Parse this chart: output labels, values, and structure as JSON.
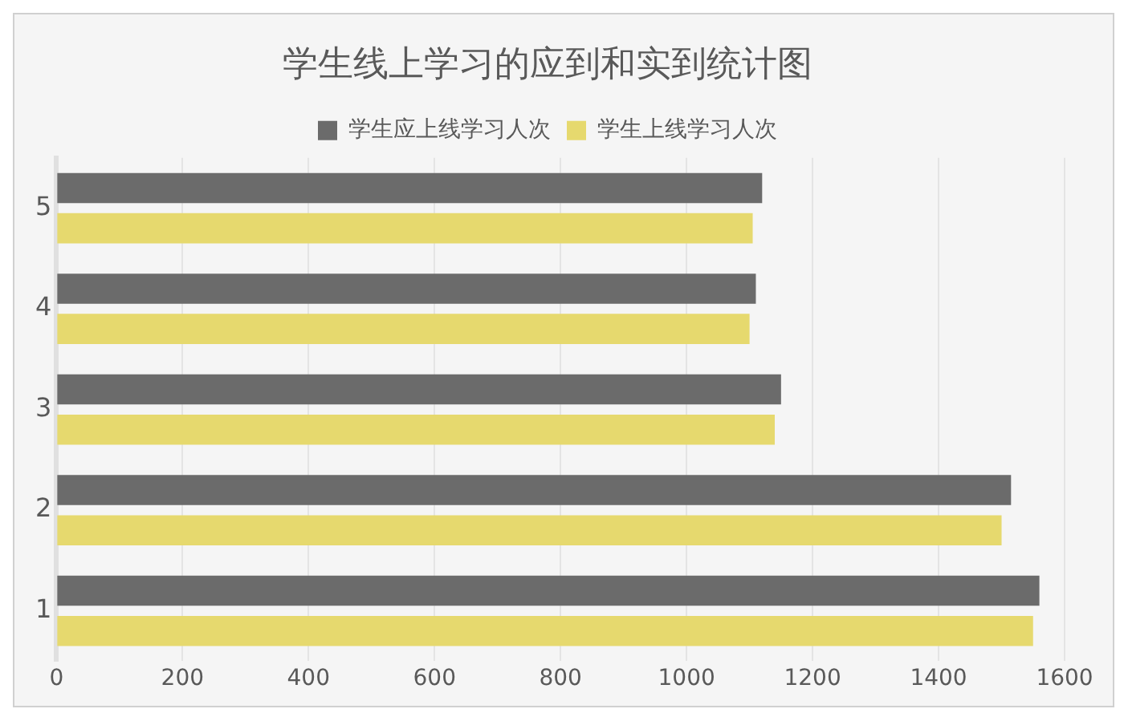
{
  "chart_data": {
    "type": "bar",
    "orientation": "horizontal",
    "title": "学生线上学习的应到和实到统计图",
    "categories": [
      "5",
      "4",
      "3",
      "2",
      "1"
    ],
    "series": [
      {
        "name": "学生应上线学习人次",
        "color": "#6b6b6b",
        "values": [
          1120,
          1110,
          1150,
          1515,
          1560
        ]
      },
      {
        "name": "学生上线学习人次",
        "color": "#e6d96e",
        "values": [
          1105,
          1100,
          1140,
          1500,
          1550
        ]
      }
    ],
    "xlim": [
      0,
      1600
    ],
    "xticks": [
      0,
      200,
      400,
      600,
      800,
      1000,
      1200,
      1400,
      1600
    ],
    "grid": "x",
    "legend": "top"
  }
}
